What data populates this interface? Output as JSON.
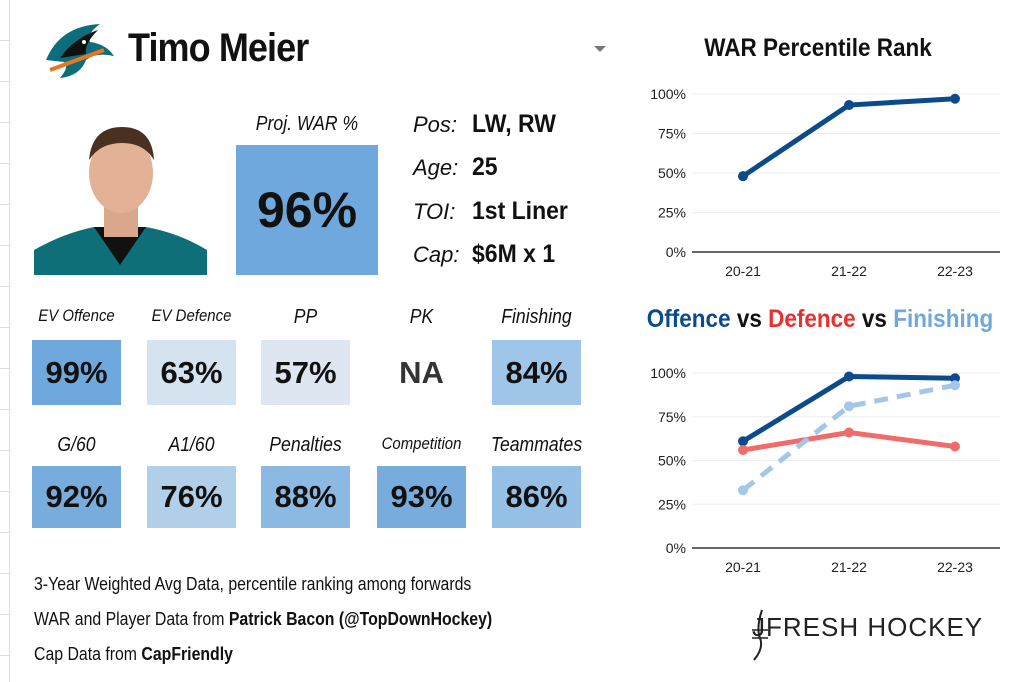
{
  "player": {
    "name": "Timo Meier",
    "team_logo": "sharks-logo",
    "photo": "player-headshot"
  },
  "proj_war": {
    "label": "Proj. WAR %",
    "value": "96%",
    "color": "#6fa8dc"
  },
  "info": [
    {
      "label": "Pos:",
      "value": "LW, RW"
    },
    {
      "label": "Age:",
      "value": "25"
    },
    {
      "label": "TOI:",
      "value": "1st Liner"
    },
    {
      "label": "Cap:",
      "value": "$6M x 1"
    }
  ],
  "tiles": [
    {
      "label": "EV Offence",
      "value": "99%",
      "color": "#6fa8dc"
    },
    {
      "label": "EV Defence",
      "value": "63%",
      "color": "#d5e3f0"
    },
    {
      "label": "PP",
      "value": "57%",
      "color": "#dee7f1"
    },
    {
      "label": "PK",
      "value": "NA",
      "color": "#ffffff"
    },
    {
      "label": "Finishing",
      "value": "84%",
      "color": "#9fc5e8"
    },
    {
      "label": "G/60",
      "value": "92%",
      "color": "#78acdd"
    },
    {
      "label": "A1/60",
      "value": "76%",
      "color": "#b2cfea"
    },
    {
      "label": "Penalties",
      "value": "88%",
      "color": "#8cb9e2"
    },
    {
      "label": "Competition",
      "value": "93%",
      "color": "#78acdd"
    },
    {
      "label": "Teammates",
      "value": "86%",
      "color": "#96bfe6"
    }
  ],
  "footer": {
    "line1": "3-Year Weighted Avg Data, percentile ranking among forwards",
    "line2_prefix": "WAR and Player Data from ",
    "line2_bold": "Patrick Bacon (@TopDownHockey)",
    "line3_prefix": "Cap Data from ",
    "line3_bold": "CapFriendly"
  },
  "brand": "JFRESH HOCKEY",
  "chart_data": [
    {
      "type": "line",
      "title": "WAR Percentile Rank",
      "categories": [
        "20-21",
        "21-22",
        "22-23"
      ],
      "yticks": [
        "0%",
        "25%",
        "50%",
        "75%",
        "100%"
      ],
      "ylim": [
        0,
        100
      ],
      "grid": true,
      "series": [
        {
          "values": [
            48,
            93,
            97
          ],
          "color": "#0b4a8b",
          "dash": false
        }
      ]
    },
    {
      "type": "line",
      "title_parts": [
        {
          "text": "Offence",
          "color": "#0b4a8b"
        },
        {
          "text": " vs ",
          "color": "#111111"
        },
        {
          "text": "Defence",
          "color": "#e8312f"
        },
        {
          "text": " vs ",
          "color": "#111111"
        },
        {
          "text": "Finishing",
          "color": "#6fa8dc"
        }
      ],
      "categories": [
        "20-21",
        "21-22",
        "22-23"
      ],
      "yticks": [
        "0%",
        "25%",
        "50%",
        "75%",
        "100%"
      ],
      "ylim": [
        0,
        100
      ],
      "grid": true,
      "series": [
        {
          "name": "Offence",
          "values": [
            61,
            98,
            97
          ],
          "color": "#0b4a8b",
          "dash": false
        },
        {
          "name": "Defence",
          "values": [
            56,
            66,
            58
          ],
          "color": "#f26b6b",
          "dash": false
        },
        {
          "name": "Finishing",
          "values": [
            33,
            81,
            93
          ],
          "color": "#a4c6e8",
          "dash": true
        }
      ]
    }
  ]
}
